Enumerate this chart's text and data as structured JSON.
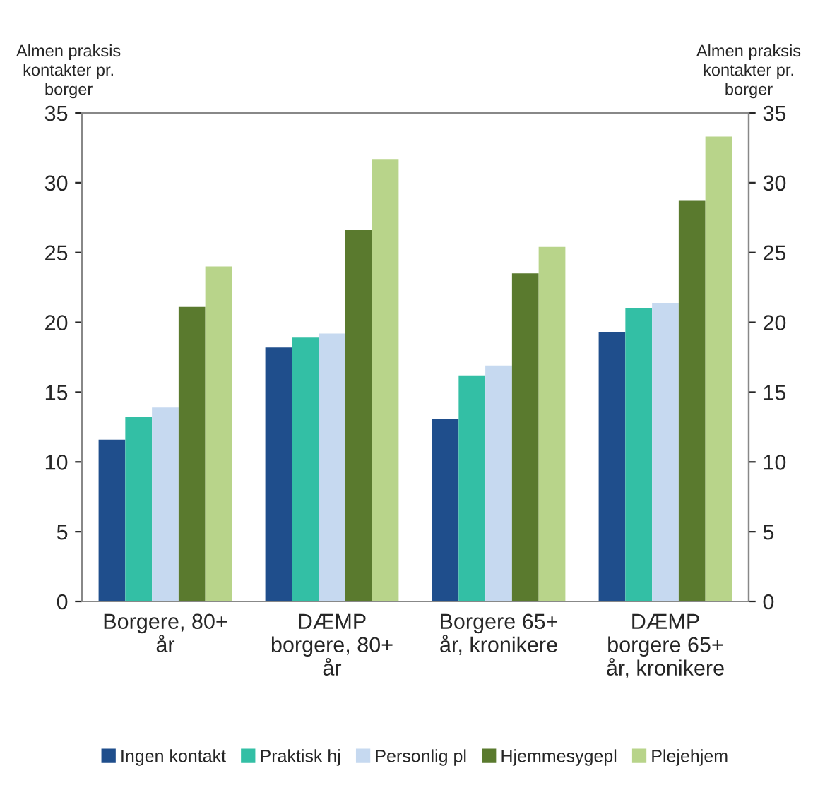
{
  "chart_data": {
    "type": "bar",
    "categories": [
      "Borgere, 80+\når",
      "DÆMP\nborgere, 80+\når",
      "Borgere 65+\når, kronikere",
      "DÆMP\nborgere 65+\når, kronikere"
    ],
    "ylabel": "Almen praksis\nkontakter pr.\nborger",
    "y2label": "Almen praksis\nkontakter pr.\nborger",
    "ylim": [
      0,
      35
    ],
    "yticks": [
      0,
      5,
      10,
      15,
      20,
      25,
      30,
      35
    ],
    "y2lim": [
      0,
      35
    ],
    "y2ticks": [
      0,
      5,
      10,
      15,
      20,
      25,
      30,
      35
    ],
    "grid": false,
    "legend": "bottom",
    "series": [
      {
        "name": "Ingen kontakt",
        "color": "#1f4e8c",
        "values": [
          11.6,
          18.2,
          13.1,
          19.3
        ]
      },
      {
        "name": "Praktisk hj",
        "color": "#33bfa5",
        "values": [
          13.2,
          18.9,
          16.2,
          21.0
        ]
      },
      {
        "name": "Personlig pl",
        "color": "#c6d9f0",
        "values": [
          13.9,
          19.2,
          16.9,
          21.4
        ]
      },
      {
        "name": "Hjemmesygepl",
        "color": "#5a7a2e",
        "values": [
          21.1,
          26.6,
          23.5,
          28.7
        ]
      },
      {
        "name": "Plejehjem",
        "color": "#b8d48a",
        "values": [
          24.0,
          31.7,
          25.4,
          33.3
        ]
      }
    ]
  }
}
